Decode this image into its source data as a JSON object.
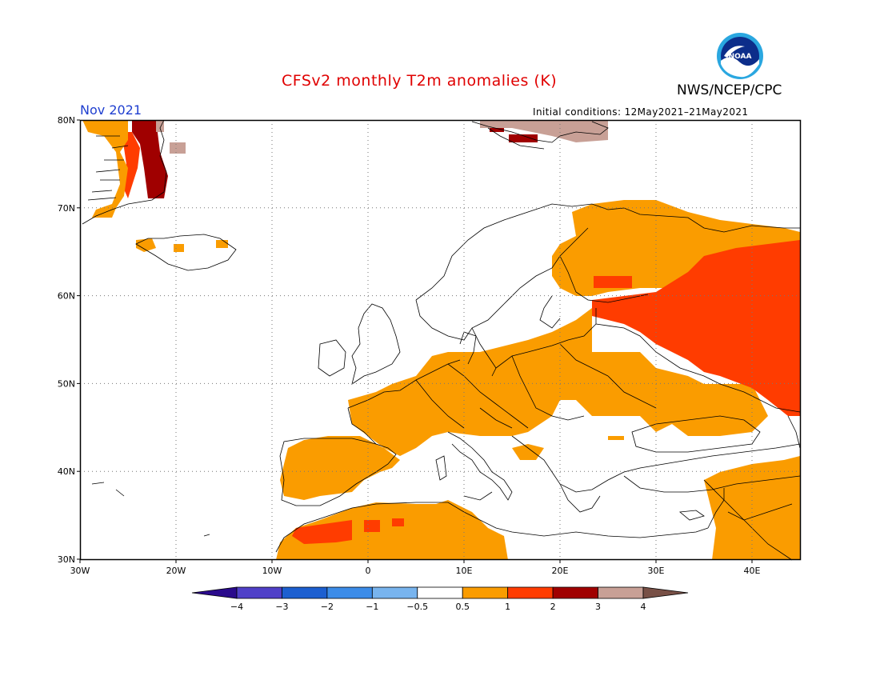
{
  "header": {
    "title": "CFSv2 monthly T2m anomalies (K)",
    "agency": "NWS/NCEP/CPC",
    "logo_text": "NOAA",
    "period": "Nov 2021",
    "initial_conditions": "Initial conditions: 12May2021–21May2021"
  },
  "map": {
    "lon_range": [
      -30,
      45
    ],
    "lat_range": [
      30,
      80
    ],
    "x_ticks": [
      "30W",
      "20W",
      "10W",
      "0",
      "10E",
      "20E",
      "30E",
      "40E"
    ],
    "y_ticks": [
      "30N",
      "40N",
      "50N",
      "60N",
      "70N",
      "80N"
    ],
    "grid": "dotted",
    "background": "#ffffff",
    "coastline_color": "#000000"
  },
  "colorbar": {
    "labels": [
      "−4",
      "−3",
      "−2",
      "−1",
      "−0.5",
      "0.5",
      "1",
      "2",
      "3",
      "4"
    ],
    "colors": [
      "#2a0a8c",
      "#5040c8",
      "#1c5fd0",
      "#3c8ce8",
      "#78b4ee",
      "#ffffff",
      "#fa9c00",
      "#ff3c00",
      "#a00000",
      "#c8a096",
      "#785046"
    ]
  },
  "anomaly_regions": [
    {
      "class": "0.5 to 1",
      "color": "#fa9c00",
      "area": "Western and Central Europe"
    },
    {
      "class": "0.5 to 1",
      "color": "#fa9c00",
      "area": "Iberia and NW Africa"
    },
    {
      "class": "0.5 to 1",
      "color": "#fa9c00",
      "area": "Scandinavia and NW Russia"
    },
    {
      "class": "0.5 to 1",
      "color": "#fa9c00",
      "area": "Turkey and Middle East"
    },
    {
      "class": "1 to 2",
      "color": "#ff3c00",
      "area": "Western Russia"
    },
    {
      "class": "1 to 2",
      "color": "#ff3c00",
      "area": "Morocco"
    },
    {
      "class": "2 to 3",
      "color": "#a00000",
      "area": "East Greenland"
    },
    {
      "class": "2 to 3",
      "color": "#a00000",
      "area": "Svalbard"
    },
    {
      "class": "3 to 4",
      "color": "#c8a096",
      "area": "East Greenland coast"
    },
    {
      "class": "3 to 4",
      "color": "#c8a096",
      "area": "Svalbard"
    }
  ]
}
